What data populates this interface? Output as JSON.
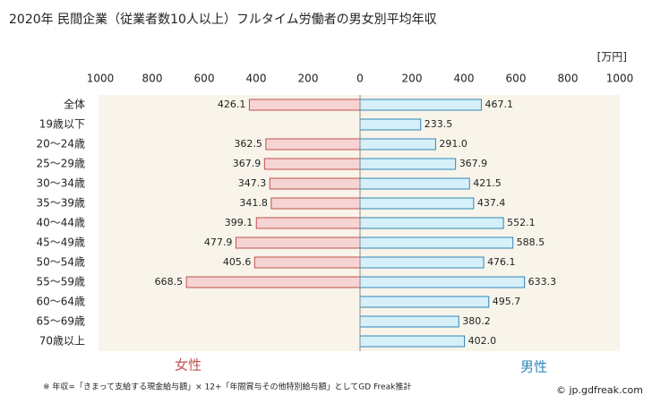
{
  "chart_data": {
    "type": "butterfly-bar",
    "title": "2020年 民間企業（従業者数10人以上）フルタイム労働者の男女別平均年収",
    "unit_label": "[万円]",
    "categories": [
      "全体",
      "19歳以下",
      "20〜24歳",
      "25〜29歳",
      "30〜34歳",
      "35〜39歳",
      "40〜44歳",
      "45〜49歳",
      "50〜54歳",
      "55〜59歳",
      "60〜64歳",
      "65〜69歳",
      "70歳以上"
    ],
    "series": [
      {
        "name": "女性",
        "side": "left",
        "color": "#f6d4d4",
        "edgecolor": "#c0504d",
        "values": [
          426.1,
          null,
          362.5,
          367.9,
          347.3,
          341.8,
          399.1,
          477.9,
          405.6,
          668.5,
          null,
          null,
          null
        ],
        "value_labels": [
          "426.1",
          null,
          "362.5",
          "367.9",
          "347.3",
          "341.8",
          "399.1",
          "477.9",
          "405.6",
          "668.5",
          null,
          null,
          null
        ]
      },
      {
        "name": "男性",
        "side": "right",
        "color": "#d6f0fa",
        "edgecolor": "#2e86b8",
        "values": [
          467.1,
          233.5,
          291.0,
          367.9,
          421.5,
          437.4,
          552.1,
          588.5,
          476.1,
          633.3,
          495.7,
          380.2,
          402.0
        ],
        "value_labels": [
          "467.1",
          "233.5",
          "291.0",
          "367.9",
          "421.5",
          "437.4",
          "552.1",
          "588.5",
          "476.1",
          "633.3",
          "495.7",
          "380.2",
          "402.0"
        ]
      }
    ],
    "xlim": [
      0,
      1000
    ],
    "xticks_left": [
      1000,
      800,
      600,
      400,
      200
    ],
    "xticks": [
      0,
      200,
      400,
      600,
      800,
      1000
    ],
    "footnote": "※ 年収=「きまって支給する現金給与額」× 12+「年間賞与その他特別給与額」としてGD Freak推計",
    "watermark": "© jp.gdfreak.com"
  }
}
